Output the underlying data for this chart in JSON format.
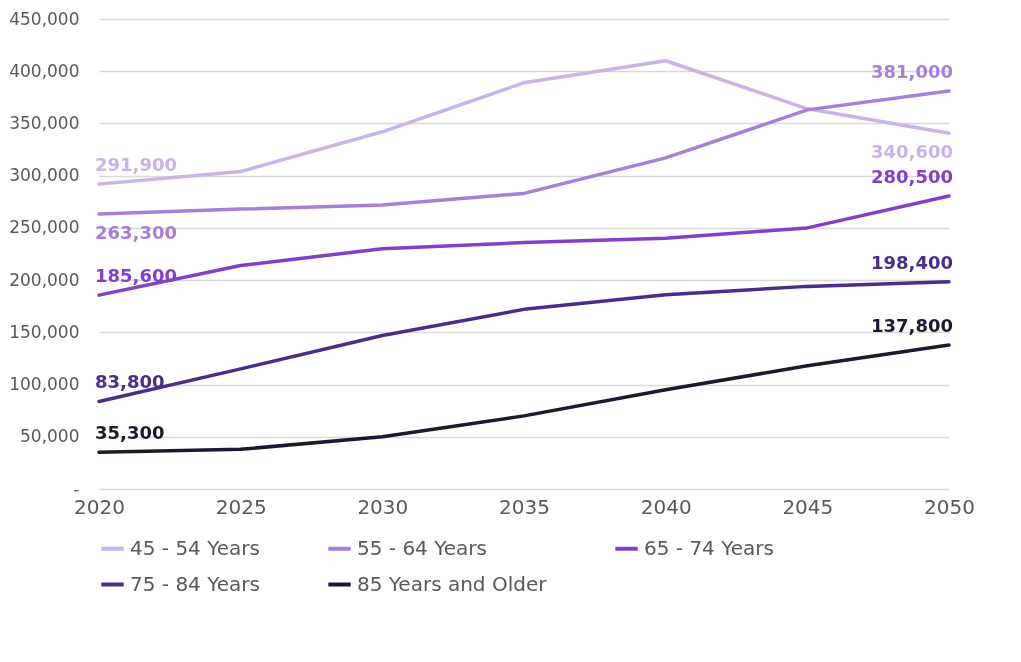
{
  "chart_data": {
    "type": "line",
    "categories": [
      "2020",
      "2025",
      "2030",
      "2035",
      "2040",
      "2045",
      "2050"
    ],
    "series": [
      {
        "name": "45 - 54 Years",
        "color": "#c9b3e8",
        "values": [
          291900,
          304000,
          342000,
          389000,
          410000,
          364000,
          340600
        ],
        "value_labels": [
          "291,900",
          null,
          null,
          null,
          null,
          null,
          "340,600"
        ]
      },
      {
        "name": "55 - 64 Years",
        "color": "#a67fd9",
        "values": [
          263300,
          268000,
          272000,
          283000,
          317000,
          363000,
          381000
        ],
        "value_labels": [
          "263,300",
          null,
          null,
          null,
          null,
          null,
          "381,000"
        ]
      },
      {
        "name": "65 - 74 Years",
        "color": "#8240c8",
        "values": [
          185600,
          214000,
          230000,
          236000,
          240000,
          250000,
          280500
        ],
        "value_labels": [
          "185,600",
          null,
          null,
          null,
          null,
          null,
          "280,500"
        ]
      },
      {
        "name": "75 - 84 Years",
        "color": "#4a2d88",
        "values": [
          83800,
          115000,
          147000,
          172000,
          186000,
          194000,
          198400
        ],
        "value_labels": [
          "83,800",
          null,
          null,
          null,
          null,
          null,
          "198,400"
        ]
      },
      {
        "name": "85 Years and Older",
        "color": "#201634",
        "values": [
          35300,
          38000,
          50000,
          70000,
          95000,
          118000,
          137800
        ],
        "value_labels": [
          "35,300",
          null,
          null,
          null,
          null,
          null,
          "137,800"
        ]
      }
    ],
    "ylim": [
      0,
      450000
    ],
    "yticks": [
      {
        "value": 0,
        "label": "-"
      },
      {
        "value": 50000,
        "label": "50,000"
      },
      {
        "value": 100000,
        "label": "100,000"
      },
      {
        "value": 150000,
        "label": "150,000"
      },
      {
        "value": 200000,
        "label": "200,000"
      },
      {
        "value": 250000,
        "label": "250,000"
      },
      {
        "value": 300000,
        "label": "300,000"
      },
      {
        "value": 350000,
        "label": "350,000"
      },
      {
        "value": 400000,
        "label": "400,000"
      },
      {
        "value": 450000,
        "label": "450,000"
      }
    ],
    "grid": "y",
    "legend": "bottom",
    "marker": "none",
    "line_style": "solid"
  }
}
